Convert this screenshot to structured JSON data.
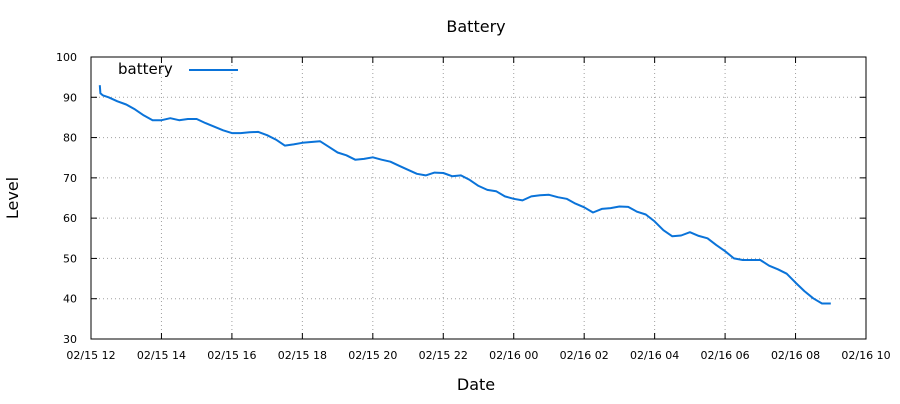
{
  "chart_data": {
    "type": "line",
    "title": "Battery",
    "xlabel": "Date",
    "ylabel": "Level",
    "x_tick_labels": [
      "02/15 12",
      "02/15 14",
      "02/15 16",
      "02/15 18",
      "02/15 20",
      "02/15 22",
      "02/16 00",
      "02/16 02",
      "02/16 04",
      "02/16 06",
      "02/16 08",
      "02/16 10"
    ],
    "y_tick_labels": [
      "30",
      "40",
      "50",
      "60",
      "70",
      "80",
      "90",
      "100"
    ],
    "xlim": [
      "2025-02-15 12:00",
      "2025-02-16 10:00"
    ],
    "ylim": [
      30,
      100
    ],
    "grid": true,
    "legend_position": "top-left",
    "series": [
      {
        "name": "battery",
        "color": "#0a73d9",
        "x": [
          "2025-02-15 12:15",
          "2025-02-15 12:16",
          "2025-02-15 12:20",
          "2025-02-15 12:30",
          "2025-02-15 12:45",
          "2025-02-15 13:00",
          "2025-02-15 13:15",
          "2025-02-15 13:30",
          "2025-02-15 13:45",
          "2025-02-15 14:00",
          "2025-02-15 14:15",
          "2025-02-15 14:30",
          "2025-02-15 14:45",
          "2025-02-15 15:00",
          "2025-02-15 15:15",
          "2025-02-15 15:30",
          "2025-02-15 15:45",
          "2025-02-15 16:00",
          "2025-02-15 16:15",
          "2025-02-15 16:30",
          "2025-02-15 16:45",
          "2025-02-15 17:00",
          "2025-02-15 17:15",
          "2025-02-15 17:30",
          "2025-02-15 17:45",
          "2025-02-15 18:00",
          "2025-02-15 18:15",
          "2025-02-15 18:30",
          "2025-02-15 18:45",
          "2025-02-15 19:00",
          "2025-02-15 19:15",
          "2025-02-15 19:30",
          "2025-02-15 19:45",
          "2025-02-15 20:00",
          "2025-02-15 20:15",
          "2025-02-15 20:30",
          "2025-02-15 20:45",
          "2025-02-15 21:00",
          "2025-02-15 21:15",
          "2025-02-15 21:30",
          "2025-02-15 21:45",
          "2025-02-15 22:00",
          "2025-02-15 22:15",
          "2025-02-15 22:30",
          "2025-02-15 22:45",
          "2025-02-15 23:00",
          "2025-02-15 23:15",
          "2025-02-15 23:30",
          "2025-02-15 23:45",
          "2025-02-16 00:00",
          "2025-02-16 00:15",
          "2025-02-16 00:30",
          "2025-02-16 00:45",
          "2025-02-16 01:00",
          "2025-02-16 01:15",
          "2025-02-16 01:30",
          "2025-02-16 01:45",
          "2025-02-16 02:00",
          "2025-02-16 02:15",
          "2025-02-16 02:30",
          "2025-02-16 02:45",
          "2025-02-16 03:00",
          "2025-02-16 03:15",
          "2025-02-16 03:30",
          "2025-02-16 03:45",
          "2025-02-16 04:00",
          "2025-02-16 04:15",
          "2025-02-16 04:30",
          "2025-02-16 04:45",
          "2025-02-16 05:00",
          "2025-02-16 05:15",
          "2025-02-16 05:30",
          "2025-02-16 05:45",
          "2025-02-16 06:00",
          "2025-02-16 06:15",
          "2025-02-16 06:30",
          "2025-02-16 06:45",
          "2025-02-16 07:00",
          "2025-02-16 07:15",
          "2025-02-16 07:30",
          "2025-02-16 07:45",
          "2025-02-16 08:00",
          "2025-02-16 08:15",
          "2025-02-16 08:30",
          "2025-02-16 08:45",
          "2025-02-16 09:00"
        ],
        "values": [
          93,
          91,
          90.5,
          90,
          89,
          88.2,
          87,
          85.5,
          84.3,
          84.3,
          84.8,
          84.3,
          84.6,
          84.6,
          83.6,
          82.7,
          81.8,
          81.1,
          81.1,
          81.3,
          81.4,
          80.6,
          79.5,
          78,
          78.3,
          78.7,
          78.9,
          79.1,
          77.7,
          76.3,
          75.6,
          74.5,
          74.7,
          75.1,
          74.5,
          74,
          73,
          72,
          71,
          70.6,
          71.3,
          71.2,
          70.4,
          70.6,
          69.5,
          68,
          67,
          66.7,
          65.4,
          64.8,
          64.4,
          65.4,
          65.7,
          65.8,
          65.2,
          64.8,
          63.6,
          62.7,
          61.4,
          62.3,
          62.5,
          62.9,
          62.8,
          61.6,
          60.9,
          59.2,
          57,
          55.5,
          55.7,
          56.5,
          55.6,
          55,
          53.3,
          51.8,
          50,
          49.6,
          49.6,
          49.6,
          48.2,
          47.3,
          46.2,
          44,
          41.9,
          40.1,
          38.8,
          38.8
        ]
      }
    ]
  }
}
